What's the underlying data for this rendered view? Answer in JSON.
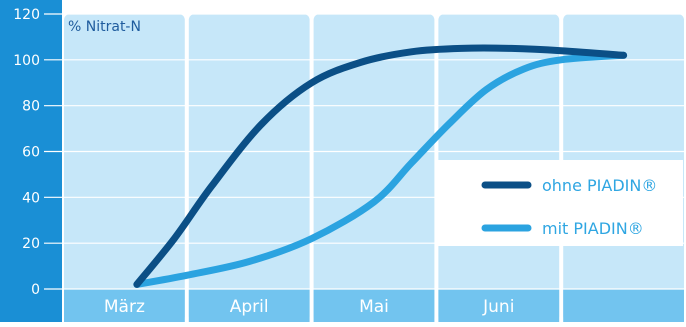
{
  "chart_data": {
    "type": "line",
    "title": "",
    "xlabel": "",
    "ylabel": "% Nitrat-N",
    "ylim": [
      0,
      120
    ],
    "yticks": [
      0,
      20,
      40,
      60,
      80,
      100,
      120
    ],
    "categories": [
      "März",
      "April",
      "Mai",
      "Juni",
      ""
    ],
    "x_range": [
      0,
      5
    ],
    "grid": true,
    "legend_position": "right",
    "series": [
      {
        "name": "ohne PIADIN®",
        "color": "#0b4f86",
        "x": [
          0.6,
          0.9,
          1.2,
          1.6,
          2.0,
          2.4,
          2.8,
          3.2,
          3.6,
          4.0,
          4.5
        ],
        "y": [
          2,
          22,
          45,
          72,
          90,
          99,
          103.5,
          105,
          105,
          104,
          102
        ]
      },
      {
        "name": "mit PIADIN®",
        "color": "#2ba3e0",
        "x": [
          0.6,
          1.0,
          1.5,
          2.0,
          2.5,
          2.8,
          3.1,
          3.4,
          3.7,
          4.0,
          4.5
        ],
        "y": [
          2,
          6,
          12,
          22,
          38,
          55,
          72,
          87,
          96,
          100,
          102
        ]
      }
    ]
  }
}
